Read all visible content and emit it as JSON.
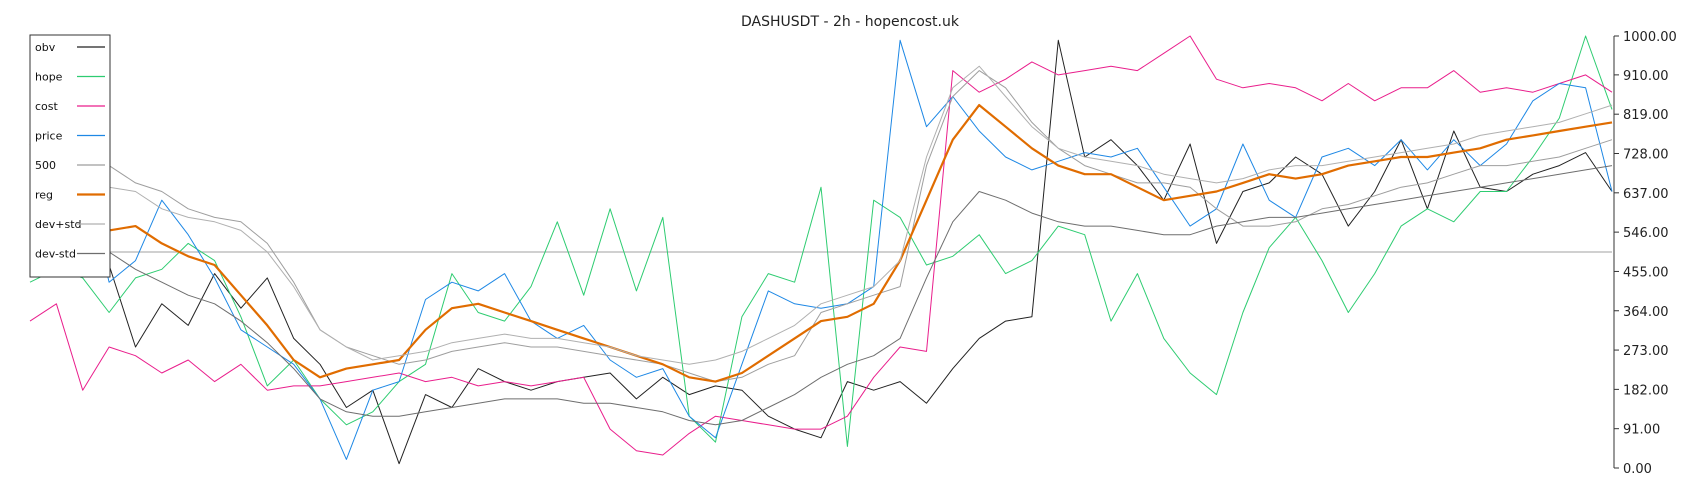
{
  "chart_data": {
    "type": "line",
    "title": "DASHUSDT - 2h - hopencost.uk",
    "ylim": [
      0,
      1000
    ],
    "y_ticks": [
      "1000.00",
      "910.00",
      "819.00",
      "728.00",
      "637.00",
      "546.00",
      "455.00",
      "364.00",
      "273.00",
      "182.00",
      "91.00",
      "0.00"
    ],
    "y_tick_values": [
      1000,
      910,
      819,
      728,
      637,
      546,
      455,
      364,
      273,
      182,
      91,
      0
    ],
    "reference_line": 500,
    "legend_position": "top-left",
    "x_count": 61,
    "series": [
      {
        "name": "obv",
        "color": "#222222",
        "values": [
          520,
          490,
          510,
          470,
          280,
          380,
          330,
          450,
          370,
          440,
          300,
          240,
          140,
          180,
          10,
          170,
          140,
          230,
          200,
          180,
          200,
          210,
          220,
          160,
          210,
          170,
          190,
          180,
          120,
          90,
          70,
          200,
          180,
          200,
          150,
          230,
          300,
          340,
          350,
          990,
          720,
          760,
          700,
          620,
          750,
          520,
          640,
          660,
          720,
          680,
          560,
          640,
          760,
          600,
          780,
          650,
          640,
          680,
          700,
          730,
          640
        ]
      },
      {
        "name": "hope",
        "color": "#2ecc71",
        "values": [
          430,
          460,
          440,
          360,
          440,
          460,
          520,
          480,
          350,
          190,
          250,
          160,
          100,
          130,
          200,
          240,
          450,
          360,
          340,
          420,
          570,
          400,
          600,
          410,
          580,
          120,
          60,
          350,
          450,
          430,
          650,
          50,
          620,
          580,
          470,
          490,
          540,
          450,
          480,
          560,
          540,
          340,
          450,
          300,
          220,
          170,
          360,
          510,
          580,
          480,
          360,
          450,
          560,
          600,
          570,
          640,
          640,
          720,
          810,
          1000,
          830
        ]
      },
      {
        "name": "cost",
        "color": "#e91e8c",
        "values": [
          340,
          380,
          180,
          280,
          260,
          220,
          250,
          200,
          240,
          180,
          190,
          190,
          200,
          210,
          220,
          200,
          210,
          190,
          200,
          190,
          200,
          210,
          90,
          40,
          30,
          80,
          120,
          110,
          100,
          90,
          90,
          120,
          210,
          280,
          270,
          920,
          870,
          900,
          940,
          910,
          920,
          930,
          920,
          960,
          1000,
          900,
          880,
          890,
          880,
          850,
          890,
          850,
          880,
          880,
          920,
          870,
          880,
          870,
          890,
          910,
          870
        ]
      },
      {
        "name": "price",
        "color": "#1e88e5",
        "values": [
          650,
          600,
          690,
          430,
          480,
          620,
          540,
          440,
          320,
          280,
          240,
          160,
          20,
          180,
          200,
          390,
          430,
          410,
          450,
          340,
          300,
          330,
          250,
          210,
          230,
          120,
          70,
          240,
          410,
          380,
          370,
          380,
          420,
          990,
          790,
          860,
          780,
          720,
          690,
          710,
          730,
          720,
          740,
          650,
          560,
          600,
          750,
          620,
          580,
          720,
          740,
          700,
          760,
          690,
          760,
          700,
          750,
          850,
          890,
          880,
          640
        ]
      },
      {
        "name": "500",
        "color": "#9e9e9e",
        "values": [
          870,
          830,
          780,
          700,
          660,
          640,
          600,
          580,
          570,
          520,
          430,
          320,
          280,
          260,
          240,
          250,
          270,
          280,
          290,
          280,
          280,
          270,
          260,
          250,
          240,
          220,
          200,
          210,
          240,
          260,
          360,
          380,
          400,
          420,
          700,
          860,
          920,
          880,
          800,
          740,
          700,
          680,
          660,
          660,
          650,
          600,
          560,
          560,
          570,
          600,
          610,
          630,
          650,
          660,
          680,
          700,
          700,
          710,
          720,
          740,
          760
        ]
      },
      {
        "name": "reg",
        "color": "#e06c00",
        "values": [
          750,
          700,
          610,
          550,
          560,
          520,
          490,
          470,
          400,
          330,
          250,
          210,
          230,
          240,
          250,
          320,
          370,
          380,
          360,
          340,
          320,
          300,
          280,
          260,
          240,
          210,
          200,
          220,
          260,
          300,
          340,
          350,
          380,
          480,
          620,
          760,
          840,
          790,
          740,
          700,
          680,
          680,
          650,
          620,
          630,
          640,
          660,
          680,
          670,
          680,
          700,
          710,
          720,
          720,
          730,
          740,
          760,
          770,
          780,
          790,
          800
        ]
      },
      {
        "name": "dev+std",
        "color": "#b0b0b0",
        "values": [
          870,
          800,
          720,
          650,
          640,
          600,
          580,
          570,
          550,
          500,
          420,
          320,
          280,
          250,
          260,
          270,
          290,
          300,
          310,
          300,
          300,
          290,
          280,
          260,
          250,
          240,
          250,
          270,
          300,
          330,
          380,
          400,
          420,
          480,
          720,
          880,
          930,
          860,
          790,
          740,
          720,
          710,
          700,
          680,
          670,
          660,
          670,
          690,
          700,
          700,
          710,
          720,
          730,
          740,
          750,
          770,
          780,
          790,
          800,
          820,
          840
        ]
      },
      {
        "name": "dev-std",
        "color": "#6e6e6e",
        "values": [
          620,
          600,
          560,
          500,
          460,
          430,
          400,
          380,
          340,
          290,
          230,
          160,
          130,
          120,
          120,
          130,
          140,
          150,
          160,
          160,
          160,
          150,
          150,
          140,
          130,
          110,
          100,
          110,
          140,
          170,
          210,
          240,
          260,
          300,
          440,
          570,
          640,
          620,
          590,
          570,
          560,
          560,
          550,
          540,
          540,
          560,
          570,
          580,
          580,
          590,
          600,
          610,
          620,
          630,
          640,
          650,
          660,
          670,
          680,
          690,
          700
        ]
      }
    ]
  }
}
